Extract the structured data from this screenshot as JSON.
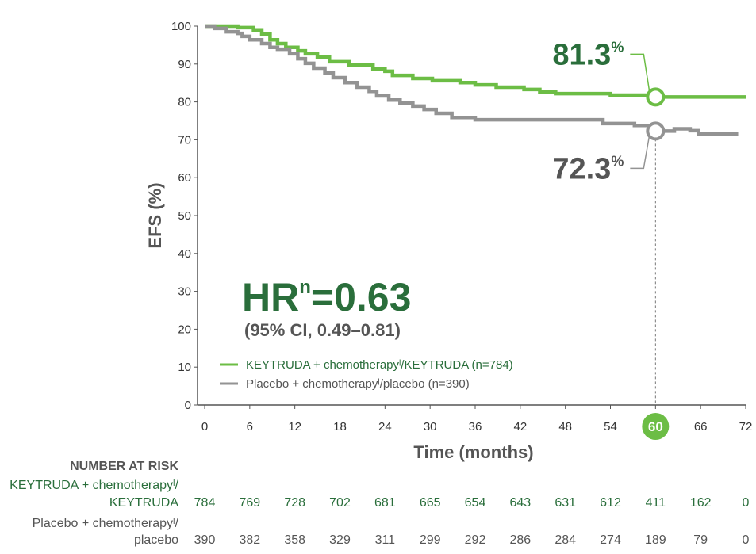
{
  "chart_data": {
    "type": "line",
    "subtype": "kaplan-meier step",
    "xlabel": "Time (months)",
    "ylabel": "EFS (%)",
    "xlim": [
      0,
      72
    ],
    "ylim": [
      0,
      100
    ],
    "x_ticks": [
      0,
      6,
      12,
      18,
      24,
      30,
      36,
      42,
      48,
      54,
      60,
      66,
      72
    ],
    "y_ticks": [
      0,
      10,
      20,
      30,
      40,
      50,
      60,
      70,
      80,
      90,
      100
    ],
    "highlight_x_tick": 60,
    "grid": false,
    "legend_placement": "bottom-left inside plot",
    "series": [
      {
        "name": "KEYTRUDA + chemotherapyˡ/KEYTRUDA (n=784)",
        "color": "#6cbd45",
        "points": [
          [
            0,
            100
          ],
          [
            4.4,
            99.6
          ],
          [
            6.5,
            99.0
          ],
          [
            7.6,
            97.9
          ],
          [
            8.7,
            96.4
          ],
          [
            9.7,
            95.4
          ],
          [
            10.8,
            94.4
          ],
          [
            12.4,
            93.5
          ],
          [
            13.4,
            92.7
          ],
          [
            15,
            91.8
          ],
          [
            16.6,
            90.6
          ],
          [
            19.2,
            89.7
          ],
          [
            22.4,
            88.7
          ],
          [
            24,
            88.1
          ],
          [
            25,
            87.0
          ],
          [
            27.7,
            86.2
          ],
          [
            30.3,
            85.6
          ],
          [
            34,
            85.1
          ],
          [
            36,
            84.5
          ],
          [
            38.8,
            83.9
          ],
          [
            42.5,
            83.3
          ],
          [
            44.6,
            82.6
          ],
          [
            46.7,
            82.2
          ],
          [
            54,
            81.8
          ],
          [
            59.3,
            81.5
          ],
          [
            60,
            81.3
          ],
          [
            72,
            81.3
          ]
        ],
        "marker": {
          "x": 60,
          "value": 81.3,
          "label": "81.3",
          "unit": "%"
        }
      },
      {
        "name": "Placebo + chemotherapyˡ/placebo (n=390)",
        "color": "#939393",
        "points": [
          [
            0,
            100
          ],
          [
            1.3,
            99.4
          ],
          [
            2.9,
            98.5
          ],
          [
            4.4,
            98.1
          ],
          [
            5,
            97.3
          ],
          [
            6,
            96.4
          ],
          [
            7.6,
            95.4
          ],
          [
            8.7,
            94.4
          ],
          [
            9.7,
            93.9
          ],
          [
            11.3,
            92.7
          ],
          [
            12.4,
            91.4
          ],
          [
            13.4,
            90.2
          ],
          [
            14.5,
            88.9
          ],
          [
            16,
            87.7
          ],
          [
            17.1,
            86.4
          ],
          [
            18.7,
            85.1
          ],
          [
            20.3,
            83.9
          ],
          [
            21.9,
            82.8
          ],
          [
            22.9,
            81.6
          ],
          [
            24.5,
            80.5
          ],
          [
            26,
            79.7
          ],
          [
            27.7,
            78.9
          ],
          [
            29.2,
            78.0
          ],
          [
            30.8,
            77.0
          ],
          [
            32.9,
            75.9
          ],
          [
            36,
            75.3
          ],
          [
            42.5,
            75.3
          ],
          [
            53,
            74.3
          ],
          [
            57.2,
            73.8
          ],
          [
            59.3,
            73.2
          ],
          [
            60,
            72.3
          ],
          [
            62.5,
            72.9
          ],
          [
            64.6,
            72.4
          ],
          [
            65.7,
            71.6
          ],
          [
            71,
            71.6
          ]
        ],
        "marker": {
          "x": 60,
          "value": 72.3,
          "label": "72.3",
          "unit": "%"
        }
      }
    ],
    "annotations": {
      "hr_prefix": "HR",
      "hr_sup": "n",
      "hr_value": "=0.63",
      "ci": "(95% CI, 0.49–0.81)"
    }
  },
  "risk_table": {
    "header": "NUMBER AT RISK",
    "rows": [
      {
        "label_line1": "KEYTRUDA + chemotherapyˡ/",
        "label_line2": "KEYTRUDA",
        "color": "#2a6e3b",
        "values": [
          "784",
          "769",
          "728",
          "702",
          "681",
          "665",
          "654",
          "643",
          "631",
          "612",
          "411",
          "162",
          "0"
        ]
      },
      {
        "label_line1": "Placebo + chemotherapyˡ/",
        "label_line2": "placebo",
        "color": "#555555",
        "values": [
          "390",
          "382",
          "358",
          "329",
          "311",
          "299",
          "292",
          "286",
          "284",
          "274",
          "189",
          "79",
          "0"
        ]
      }
    ]
  },
  "colors": {
    "dark_green": "#2a6e3b",
    "light_green": "#6cbd45",
    "gray": "#939393",
    "dark_gray": "#555555"
  }
}
